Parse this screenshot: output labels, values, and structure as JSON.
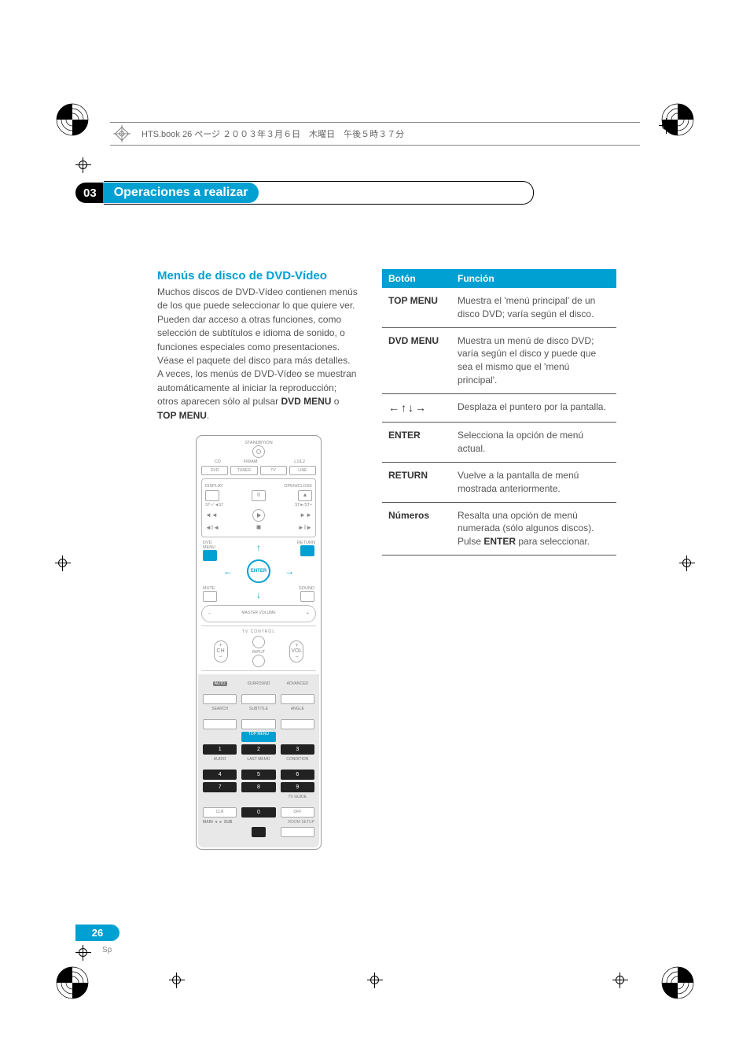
{
  "header_line": "HTS.book 26 ページ ２００３年３月６日　木曜日　午後５時３７分",
  "chapter": {
    "num": "03",
    "title": "Operaciones a realizar"
  },
  "section_title": "Menús de disco de DVD-Vídeo",
  "para1": "Muchos discos de DVD-Vídeo contienen menús de los que puede seleccionar lo que quiere ver. Pueden dar acceso a otras funciones, como selección de subtítulos e idioma de sonido, o funciones especiales como presentaciones. Véase el paquete del disco para más detalles.",
  "para2_a": "A veces, los menús de DVD-Vídeo se muestran automáticamente al iniciar la reproducción; otros aparecen sólo al pulsar ",
  "para2_b": "DVD MENU",
  "para2_c": " o ",
  "para2_d": "TOP MENU",
  "para2_e": ".",
  "table": {
    "head_boton": "Botón",
    "head_funcion": "Función",
    "rows": [
      {
        "b": "TOP MENU",
        "f": "Muestra el 'menú principal' de un disco DVD; varía según el disco."
      },
      {
        "b": "DVD MENU",
        "f": "Muestra un menú de disco DVD; varía según el disco y puede que sea el mismo que el 'menú principal'."
      },
      {
        "b": "←↑↓→",
        "f": "Desplaza el puntero por la pantalla.",
        "arrows": true
      },
      {
        "b": "ENTER",
        "f": "Selecciona la opción de menú actual."
      },
      {
        "b": "RETURN",
        "f": "Vuelve a la pantalla de menú mostrada anteriormente."
      },
      {
        "b": "Números",
        "f_pre": "Resalta una opción de menú numerada (sólo algunos discos). Pulse ",
        "f_bold": "ENTER",
        "f_post": " para seleccionar."
      }
    ]
  },
  "remote": {
    "standby": "STANDBY/ON",
    "row_cd": "CD",
    "row_fm": "FM/AM",
    "row_l12": "L1/L2",
    "g_dvd": "DVD",
    "g_tuner": "TUNER",
    "g_tv": "TV",
    "g_line": "LINE",
    "display": "DISPLAY",
    "openclose": "OPEN/CLOSE",
    "st_prev": "ST−/ ◄ST",
    "st_next": "ST►/ST+",
    "dvdmenu": "DVD MENU",
    "return": "RETURN",
    "enter": "ENTER",
    "mute": "MUTE",
    "sound": "SOUND",
    "mastervol": "MASTER VOLUME",
    "tvcontrol": "TV CONTROL",
    "ch": "CH",
    "input": "INPUT",
    "vol": "VOL",
    "surround": "SURROUND",
    "advanced": "ADVANCED",
    "auto": "AUTO",
    "search": "SEARCH",
    "subtitle": "SUBTITLE",
    "angle": "ANGLE",
    "topmenu": "TOP MENU",
    "audio": "AUDIO",
    "lastmemo": "LAST MEMO",
    "condition": "CONDITION",
    "clr": "CLR",
    "disp_off": "OFF",
    "tvguide": "TV GUIDE",
    "main": "MAIN",
    "sub": "SUB",
    "roomsetup": "ROOM SETUP"
  },
  "page_num": "26",
  "page_sp": "Sp",
  "colors": {
    "accent": "#00a0d2",
    "text": "#555555",
    "bold": "#333333",
    "rule": "#555555",
    "bg": "#ffffff"
  }
}
